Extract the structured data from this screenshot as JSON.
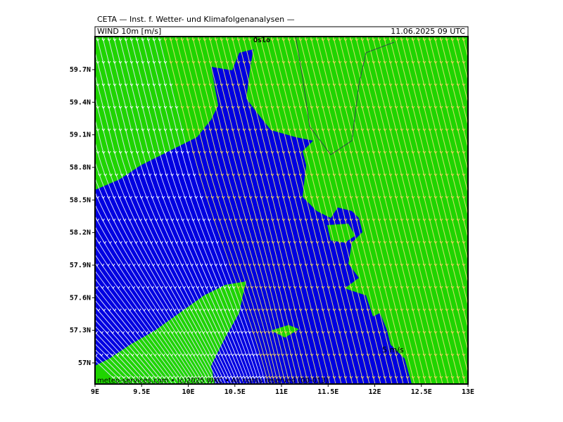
{
  "header": {
    "title": "CETA — Inst. f. Wetter- und Klimafolgenanalysen —",
    "field": "WIND 10m [m/s]",
    "time": "11.06.2025 09 UTC"
  },
  "map": {
    "lat_labels": [
      "59.7N",
      "59.4N",
      "59.1N",
      "58.8N",
      "58.5N",
      "58.2N",
      "57.9N",
      "57.6N",
      "57.3N",
      "57N"
    ],
    "lon_labels": [
      "9E",
      "9.5E",
      "10E",
      "10.5E",
      "11E",
      "11.5E",
      "12E",
      "12.5E",
      "13E"
    ],
    "place_label": "Oslo",
    "scale_label": "5 m/s",
    "credit": "meteo-services.com • (c)2025 WKC • All rights reserved (00-013)"
  }
}
